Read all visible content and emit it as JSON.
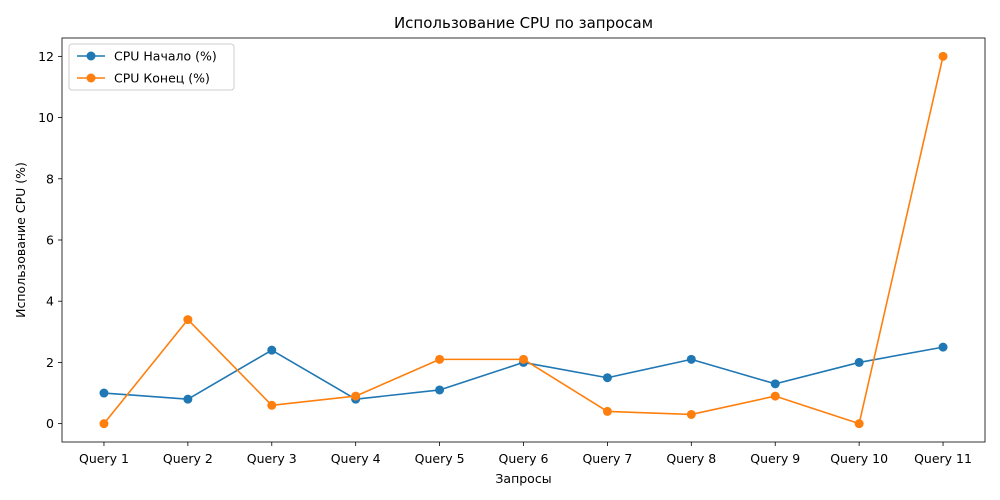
{
  "chart_data": {
    "type": "line",
    "title": "Использование CPU по запросам",
    "xlabel": "Запросы",
    "ylabel": "Использование CPU (%)",
    "categories": [
      "Query 1",
      "Query 2",
      "Query 3",
      "Query 4",
      "Query 5",
      "Query 6",
      "Query 7",
      "Query 8",
      "Query 9",
      "Query 10",
      "Query 11"
    ],
    "series": [
      {
        "name": "CPU Начало (%)",
        "color": "#1f77b4",
        "values": [
          1.0,
          0.8,
          2.4,
          0.8,
          1.1,
          2.0,
          1.5,
          2.1,
          1.3,
          2.0,
          2.5
        ]
      },
      {
        "name": "CPU Конец (%)",
        "color": "#ff7f0e",
        "values": [
          0.0,
          3.4,
          0.6,
          0.9,
          2.1,
          2.1,
          0.4,
          0.3,
          0.9,
          0.0,
          12.0
        ]
      }
    ],
    "yticks": [
      0,
      2,
      4,
      6,
      8,
      10,
      12
    ],
    "ylim": [
      -0.6,
      12.6
    ],
    "grid": false,
    "legend": "top-left"
  }
}
